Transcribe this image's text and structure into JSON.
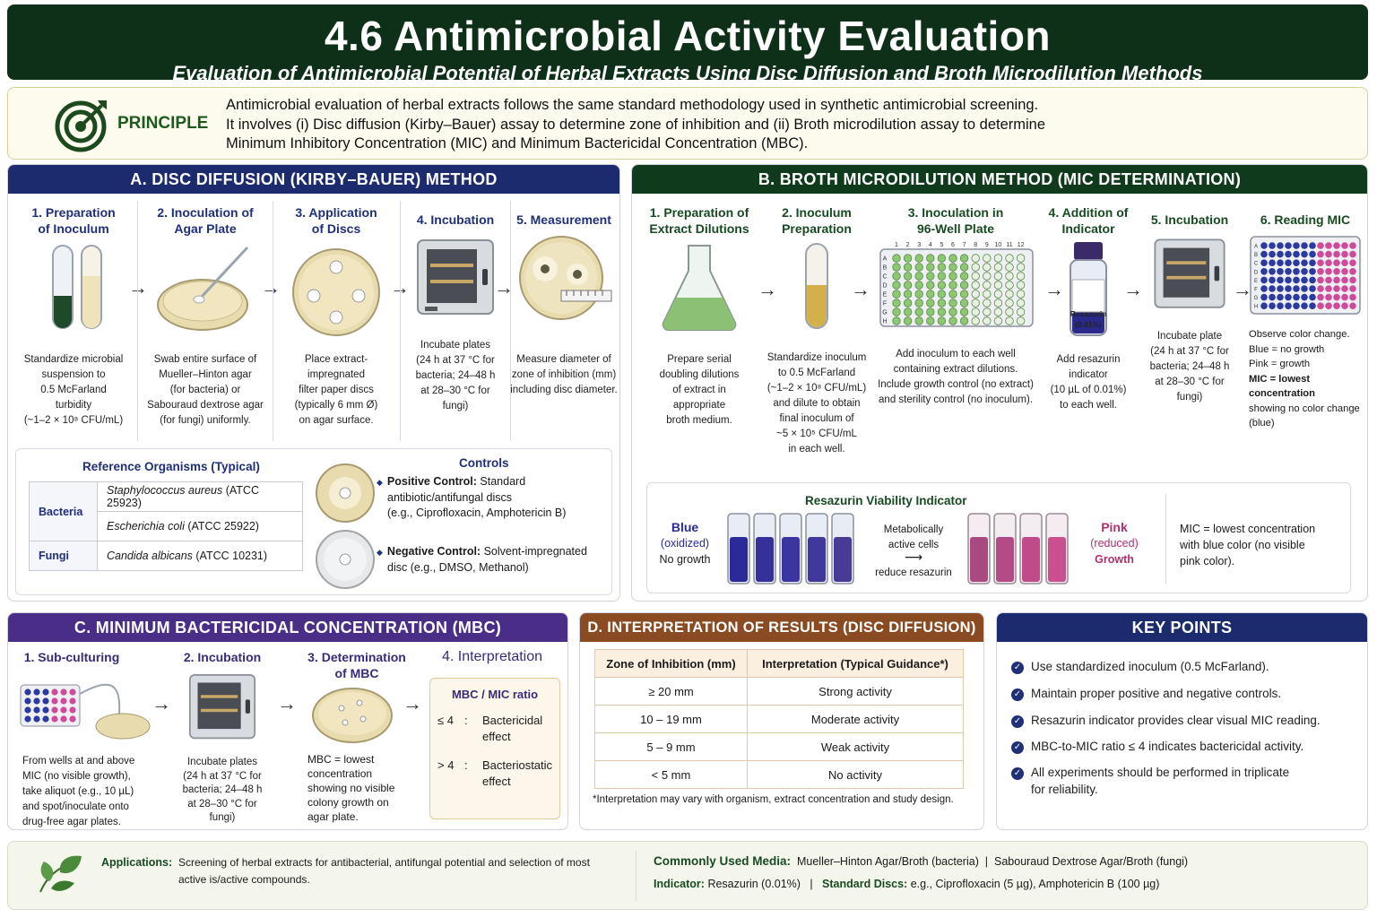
{
  "header": {
    "title": "4.6 Antimicrobial Activity Evaluation",
    "subtitle": "Evaluation of Antimicrobial Potential of Herbal Extracts Using Disc Diffusion and Broth Microdilution Methods"
  },
  "principle": {
    "label": "PRINCIPLE",
    "line1": "Antimicrobial evaluation of herbal extracts follows the same standard methodology used in synthetic antimicrobial screening.",
    "line2": "It involves (i) Disc diffusion (Kirby–Bauer) assay to determine zone of inhibition and (ii) Broth microdilution assay to determine",
    "line3": "Minimum Inhibitory Concentration (MIC) and Minimum Bactericidal Concentration (MBC)."
  },
  "sectionA": {
    "title": "A. DISC DIFFUSION (KIRBY–BAUER) METHOD",
    "steps": [
      {
        "title": "1. Preparation of Inoculum",
        "lines": [
          "Standardize microbial",
          "suspension to",
          "0.5 McFarland",
          "turbidity",
          "(~1–2 × 10⁸ CFU/mL)"
        ]
      },
      {
        "title": "2. Inoculation of Agar Plate",
        "lines": [
          "Swab entire surface of",
          "Mueller–Hinton agar",
          "(for bacteria) or",
          "Sabouraud dextrose agar",
          "(for fungi) uniformly."
        ]
      },
      {
        "title": "3. Application of Discs",
        "lines": [
          "Place extract-",
          "impregnated",
          "filter paper discs",
          "(typically 6 mm Ø)",
          "on agar surface."
        ]
      },
      {
        "title": "4. Incubation",
        "lines": [
          "Incubate plates",
          "(24 h at 37 °C for",
          "bacteria; 24–48 h",
          "at 28–30 °C for",
          "fungi)"
        ]
      },
      {
        "title": "5. Measurement",
        "lines": [
          "Measure diameter of",
          "zone of inhibition (mm)",
          "including disc diameter."
        ]
      }
    ],
    "reference": {
      "title": "Reference Organisms (Typical)",
      "bacteria_label": "Bacteria",
      "org1": "Staphylococcus aureus",
      "org1_code": " (ATCC 25923)",
      "org2": "Escherichia coli",
      "org2_code": " (ATCC 25922)",
      "fungi_label": "Fungi",
      "org3": "Candida albicans",
      "org3_code": " (ATCC 10231)"
    },
    "controls": {
      "title": "Controls",
      "pos_label": "Positive Control:",
      "pos_text1": " Standard",
      "pos_text2": "antibiotic/antifungal discs",
      "pos_text3": "(e.g., Ciprofloxacin, Amphotericin B)",
      "neg_label": "Negative Control:",
      "neg_text1": " Solvent-impregnated",
      "neg_text2": "disc (e.g., DMSO, Methanol)"
    }
  },
  "sectionB": {
    "title": "B. BROTH MICRODILUTION METHOD (MIC DETERMINATION)",
    "steps": [
      {
        "title": "1. Preparation of Extract Dilutions",
        "lines": [
          "Prepare serial",
          "doubling dilutions",
          "of extract in",
          "appropriate",
          "broth medium."
        ]
      },
      {
        "title": "2. Inoculum Preparation",
        "lines": [
          "Standardize inoculum",
          "to 0.5 McFarland",
          "(~1–2 × 10⁸ CFU/mL)",
          "and dilute to obtain",
          "final inoculum of",
          "~5 × 10⁵ CFU/mL",
          "in each well."
        ]
      },
      {
        "title": "3. Inoculation in 96-Well Plate",
        "lines": [
          "Add inoculum to each well",
          "containing extract dilutions.",
          "Include growth control (no extract)",
          "and sterility control (no inoculum)."
        ]
      },
      {
        "title": "4. Addition of Indicator",
        "lines": [
          "Add resazurin",
          "indicator",
          "(10 µL of 0.01%)",
          "to each well."
        ]
      },
      {
        "title": "5. Incubation",
        "lines": [
          "Incubate plate",
          "(24 h at 37 °C for",
          "bacteria; 24–48 h",
          "at 28–30 °C for",
          "fungi)"
        ]
      },
      {
        "title": "6. Reading MIC",
        "lines": [
          "Observe color change.",
          "Blue = no growth",
          "Pink = growth",
          "MIC = lowest concentration",
          "showing no color change",
          "(blue)"
        ]
      }
    ],
    "bottle_label1": "Resazurin",
    "bottle_label2": "(0.01%)",
    "plate_cols": [
      "1",
      "2",
      "3",
      "4",
      "5",
      "6",
      "7",
      "8",
      "9",
      "10",
      "11",
      "12"
    ],
    "plate_rows": [
      "A",
      "B",
      "C",
      "D",
      "E",
      "F",
      "G",
      "H"
    ],
    "resazurin": {
      "title": "Resazurin Viability Indicator",
      "blue": "Blue",
      "blue_sub": "(oxidized)",
      "blue_note": "No growth",
      "arrow_top1": "Metabolically",
      "arrow_top2": "active cells",
      "arrow_bottom": "reduce resazurin",
      "pink": "Pink",
      "pink_sub": "(reduced)",
      "pink_note": "Growth",
      "mic_note1": "MIC = lowest concentration",
      "mic_note2": "with blue color (no visible",
      "mic_note3": "pink color)."
    }
  },
  "sectionC": {
    "title": "C. MINIMUM BACTERICIDAL CONCENTRATION (MBC)",
    "steps": [
      {
        "title": "1. Sub-culturing",
        "lines": [
          "From wells at and above",
          "MIC (no visible growth),",
          "take aliquot (e.g., 10 µL)",
          "and spot/inoculate onto",
          "drug-free agar plates."
        ]
      },
      {
        "title": "2. Incubation",
        "lines": [
          "Incubate plates",
          "(24 h at 37 °C for",
          "bacteria; 24–48 h",
          "at 28–30 °C for",
          "fungi)"
        ]
      },
      {
        "title": "3. Determination of MBC",
        "lines": [
          "MBC = lowest",
          "concentration",
          "showing no visible",
          "colony growth on",
          "agar plate."
        ]
      },
      {
        "title": "4. Interpretation",
        "lines": []
      }
    ],
    "ratio": {
      "title": "MBC / MIC ratio",
      "r1_op": "≤ 4",
      "r1_l1": "Bactericidal",
      "r1_l2": "effect",
      "r2_op": "> 4",
      "r2_l1": "Bacteriostatic",
      "r2_l2": "effect"
    }
  },
  "sectionD": {
    "title": "D. INTERPRETATION OF RESULTS (DISC DIFFUSION)",
    "headers": [
      "Zone of Inhibition (mm)",
      "Interpretation (Typical Guidance*)"
    ],
    "rows": [
      [
        "≥ 20 mm",
        "Strong activity"
      ],
      [
        "10 – 19 mm",
        "Moderate activity"
      ],
      [
        "5 – 9 mm",
        "Weak activity"
      ],
      [
        "< 5 mm",
        "No activity"
      ]
    ],
    "footnote": "*Interpretation may vary with organism, extract concentration and study design."
  },
  "keypoints": {
    "title": "KEY POINTS",
    "items": [
      "Use standardized inoculum (0.5 McFarland).",
      "Maintain proper positive and negative controls.",
      "Resazurin indicator provides clear visual MIC reading.",
      "MBC-to-MIC ratio ≤ 4 indicates bactericidal activity.",
      "All experiments should be performed in triplicate",
      "for reliability."
    ]
  },
  "footer": {
    "app_label": "Applications:",
    "app_text1": "Screening of herbal extracts for antibacterial, antifungal potential and selection of most",
    "app_text2": "active is/active compounds.",
    "media_label": "Commonly Used Media:",
    "media_text": "Mueller–Hinton Agar/Broth (bacteria)  |  Sabouraud Dextrose Agar/Broth (fungi)",
    "indicator_label": "Indicator:",
    "indicator_text": "Resazurin (0.01%)",
    "discs_label": "Standard Discs:",
    "discs_text": "e.g., Ciprofloxacin (5 µg), Amphotericin B (100 µg)"
  },
  "colors": {
    "header_bg": "#0f3018",
    "sectionA": "#1c2a6e",
    "sectionB": "#0f3a1c",
    "sectionC": "#4a2d86",
    "sectionD": "#8a4a22",
    "keypoints": "#1c2a6e",
    "blue_resazurin": "#2a2a9a",
    "pink_resazurin": "#c04a8a"
  }
}
